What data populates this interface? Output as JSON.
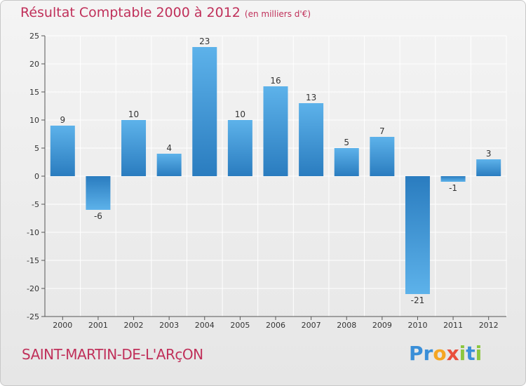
{
  "header": {
    "title": "Résultat Comptable 2000 à 2012",
    "unit": "(en milliers d'€)"
  },
  "commune": "SAINT-MARTIN-DE-L'ARçON",
  "logo": {
    "letters": [
      "P",
      "r",
      "o",
      "x",
      "i",
      "t",
      "i"
    ],
    "colors": [
      "#3a8fd8",
      "#3a8fd8",
      "#f5a623",
      "#e94e3c",
      "#8cc63f",
      "#3a8fd8",
      "#8cc63f"
    ]
  },
  "colors": {
    "bar_light": "#5db2ea",
    "bar_dark": "#2a7cbf",
    "grid": "#ffffff"
  },
  "chart_data": {
    "type": "bar",
    "title": "Résultat Comptable 2000 à 2012",
    "xlabel": "",
    "ylabel": "",
    "categories": [
      "2000",
      "2001",
      "2002",
      "2003",
      "2004",
      "2005",
      "2006",
      "2007",
      "2008",
      "2009",
      "2010",
      "2011",
      "2012"
    ],
    "values": [
      9,
      -6,
      10,
      4,
      23,
      10,
      16,
      13,
      5,
      7,
      -21,
      -1,
      3
    ],
    "data_labels": [
      "9",
      "-6",
      "10",
      "4",
      "23",
      "10",
      "16",
      "13",
      "5",
      "7",
      "-21",
      "-1",
      "3"
    ],
    "ylim": [
      -25,
      25
    ],
    "yticks": [
      25,
      20,
      15,
      10,
      5,
      0,
      -5,
      -10,
      -15,
      -20,
      -25
    ],
    "ytick_labels": [
      "25",
      "20",
      "15",
      "10",
      "5",
      "0",
      "-5",
      "-10",
      "-15",
      "-20",
      "-25"
    ],
    "grid": true
  }
}
